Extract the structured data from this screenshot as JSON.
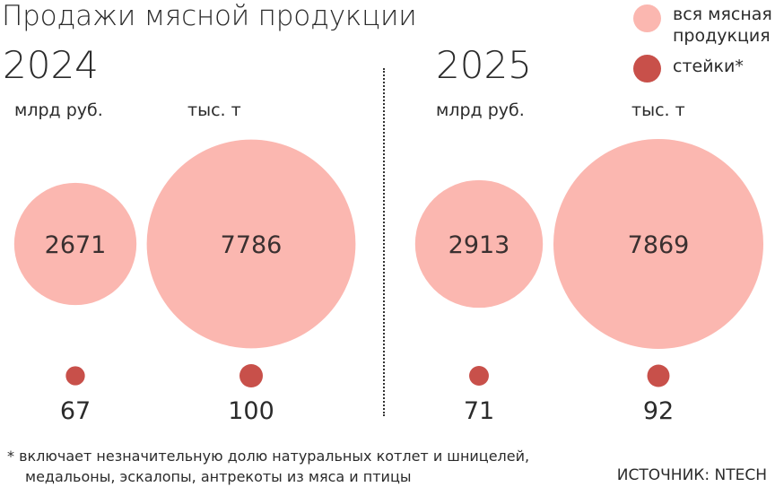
{
  "chart_data": {
    "type": "bubble",
    "title": "Продажи мясной продукции",
    "legend": [
      {
        "name": "вся мясная продукция",
        "color": "#fbb7b0"
      },
      {
        "name": "стейки*",
        "color": "#c8504a"
      }
    ],
    "groups": [
      {
        "year": "2024",
        "items": [
          {
            "unit": "млрд руб.",
            "all": 2671,
            "steaks": 67
          },
          {
            "unit": "тыс. т",
            "all": 7786,
            "steaks": 100
          }
        ]
      },
      {
        "year": "2025",
        "items": [
          {
            "unit": "млрд руб.",
            "all": 2913,
            "steaks": 71
          },
          {
            "unit": "тыс. т",
            "all": 7869,
            "steaks": 92
          }
        ]
      }
    ]
  },
  "footnote": {
    "line1": "* включает незначительную долю натуральных котлет и шницелей,",
    "line2": "медальоны, эскалопы, антрекоты из мяса и птицы"
  },
  "source": "ИСТОЧНИК: NTECH"
}
